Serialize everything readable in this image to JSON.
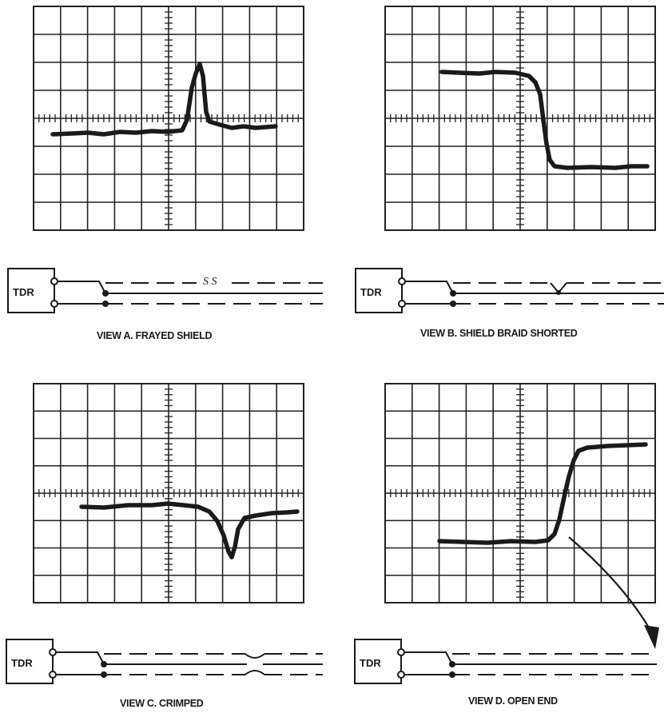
{
  "tdr_label": "TDR",
  "colors": {
    "ink": "#1a1a1a",
    "grid": "#222222",
    "background": "#ffffff"
  },
  "views": [
    {
      "id": "a",
      "caption": "VIEW A. FRAYED SHIELD",
      "trace_shape": "baseline with sharp upward spike",
      "cable_fault": "frayed shield break",
      "fault_mark": "S S"
    },
    {
      "id": "b",
      "caption": "VIEW B. SHIELD BRAID SHORTED",
      "trace_shape": "high level stepping down to low level",
      "cable_fault": "shield shorted to conductor"
    },
    {
      "id": "c",
      "caption": "VIEW C. CRIMPED",
      "trace_shape": "baseline with sharp downward dip",
      "cable_fault": "crimp in cable"
    },
    {
      "id": "d",
      "caption": "VIEW D. OPEN END",
      "trace_shape": "low level stepping up to high level",
      "cable_fault": "open end of cable, arrow from step to cable end"
    }
  ]
}
